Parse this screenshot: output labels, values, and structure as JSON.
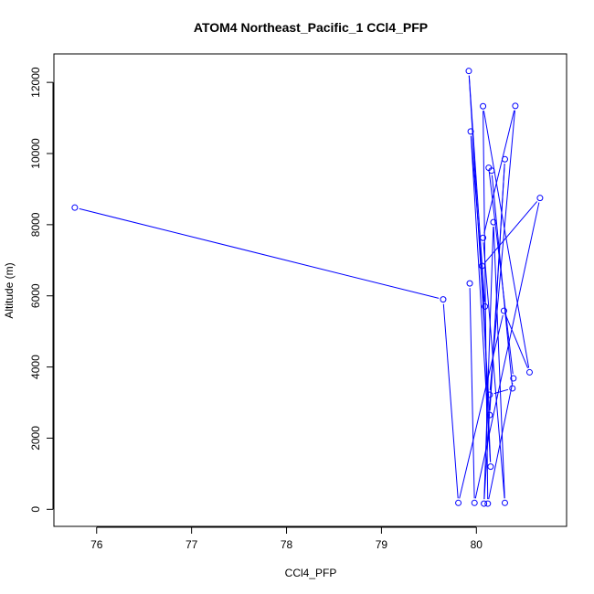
{
  "chart_data": {
    "type": "line",
    "title": "ATOM4 Northeast_Pacific_1 CCl4_PFP",
    "xlabel": "CCl4_PFP",
    "ylabel": "Altitude (m)",
    "xlim": [
      75.55,
      80.95
    ],
    "ylim": [
      -480,
      12800
    ],
    "xticks": [
      76,
      77,
      78,
      79,
      80
    ],
    "yticks": [
      0,
      2000,
      4000,
      6000,
      8000,
      10000,
      12000
    ],
    "grid": false,
    "marker": "open-circle",
    "series": [
      {
        "color": "#0000ff",
        "points": [
          {
            "x": 75.77,
            "y": 8480
          },
          {
            "x": 79.65,
            "y": 5900
          },
          {
            "x": 79.81,
            "y": 180
          },
          {
            "x": 80.29,
            "y": 5580
          },
          {
            "x": 80.56,
            "y": 3850
          },
          {
            "x": 80.07,
            "y": 11330
          },
          {
            "x": 80.12,
            "y": 160
          },
          {
            "x": 80.39,
            "y": 3680
          },
          {
            "x": 80.13,
            "y": 9600
          },
          {
            "x": 80.16,
            "y": 9520
          },
          {
            "x": 80.38,
            "y": 3400
          },
          {
            "x": 80.14,
            "y": 3220
          },
          {
            "x": 80.41,
            "y": 11340
          },
          {
            "x": 80.07,
            "y": 7630
          },
          {
            "x": 80.3,
            "y": 180
          },
          {
            "x": 80.18,
            "y": 8070
          },
          {
            "x": 80.08,
            "y": 160
          },
          {
            "x": 80.3,
            "y": 9840
          },
          {
            "x": 80.14,
            "y": 2650
          },
          {
            "x": 79.92,
            "y": 12320
          },
          {
            "x": 80.09,
            "y": 5700
          },
          {
            "x": 79.94,
            "y": 10620
          },
          {
            "x": 80.15,
            "y": 1200
          },
          {
            "x": 80.06,
            "y": 6840
          },
          {
            "x": 80.67,
            "y": 8750
          },
          {
            "x": 79.98,
            "y": 180
          },
          {
            "x": 79.93,
            "y": 6350
          }
        ]
      }
    ]
  },
  "colors": {
    "series": "#0000ff",
    "axis": "#000000",
    "background": "#ffffff"
  }
}
